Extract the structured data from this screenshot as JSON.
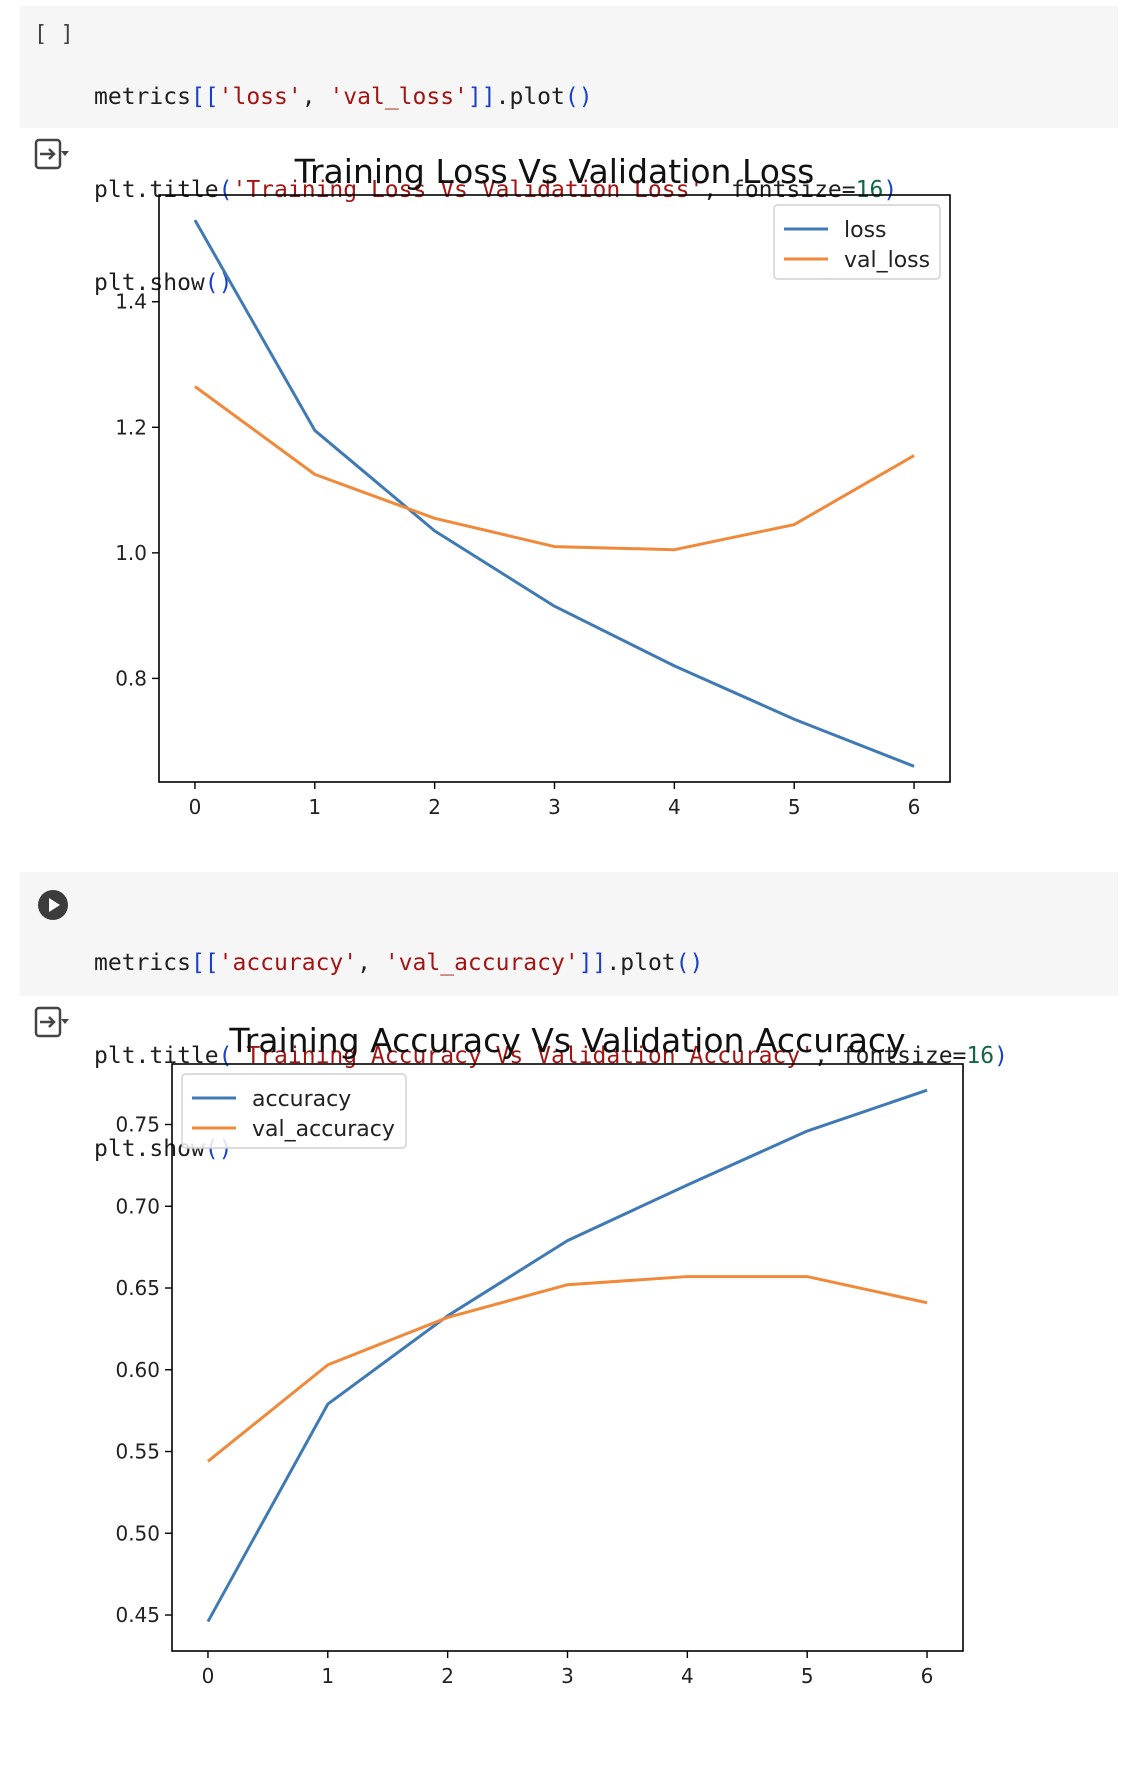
{
  "cells": [
    {
      "indicator": "[ ]",
      "code": {
        "l1": {
          "a": "metrics",
          "b": "[[",
          "c": "'loss'",
          "d": ", ",
          "e": "'val_loss'",
          "f": "]]",
          "g": ".plot",
          "h": "()"
        },
        "l2": {
          "a": "plt.title",
          "b": "(",
          "c": "'Training Loss Vs Validation Loss'",
          "d": ", fontsize=",
          "e": "16",
          "f": ")"
        },
        "l3": {
          "a": "plt.show",
          "b": "()"
        }
      }
    },
    {
      "indicator": "play-icon",
      "code": {
        "l1": {
          "a": "metrics",
          "b": "[[",
          "c": "'accuracy'",
          "d": ", ",
          "e": "'val_accuracy'",
          "f": "]]",
          "g": ".plot",
          "h": "()"
        },
        "l2": {
          "a": "plt.title",
          "b": "(",
          "c": "'Training Accuracy Vs Validation Accuracy'",
          "d": ", fontsize=",
          "e": "16",
          "f": ")"
        },
        "l3": {
          "a": "plt.show",
          "b": "()"
        }
      }
    }
  ],
  "chart_data": [
    {
      "type": "line",
      "title": "Training Loss Vs Validation Loss",
      "x": [
        0,
        1,
        2,
        3,
        4,
        5,
        6
      ],
      "series": [
        {
          "name": "loss",
          "color": "#3f7ab5",
          "values": [
            1.53,
            1.195,
            1.035,
            0.915,
            0.82,
            0.735,
            0.66
          ]
        },
        {
          "name": "val_loss",
          "color": "#f0893a",
          "values": [
            1.265,
            1.125,
            1.055,
            1.01,
            1.005,
            1.045,
            1.155
          ]
        }
      ],
      "xlim": [
        -0.3,
        6.3
      ],
      "ylim": [
        0.635,
        1.57
      ],
      "yticks": [
        "0.8",
        "1.0",
        "1.2",
        "1.4"
      ],
      "xticks": [
        "0",
        "1",
        "2",
        "3",
        "4",
        "5",
        "6"
      ],
      "legend": "top-right",
      "grid": false
    },
    {
      "type": "line",
      "title": "Training Accuracy Vs Validation Accuracy",
      "x": [
        0,
        1,
        2,
        3,
        4,
        5,
        6
      ],
      "series": [
        {
          "name": "accuracy",
          "color": "#3f7ab5",
          "values": [
            0.446,
            0.579,
            0.633,
            0.679,
            0.713,
            0.746,
            0.771
          ]
        },
        {
          "name": "val_accuracy",
          "color": "#f0893a",
          "values": [
            0.544,
            0.603,
            0.632,
            0.652,
            0.657,
            0.657,
            0.641
          ]
        }
      ],
      "xlim": [
        -0.3,
        6.3
      ],
      "ylim": [
        0.428,
        0.787
      ],
      "yticks": [
        "0.45",
        "0.50",
        "0.55",
        "0.60",
        "0.65",
        "0.70",
        "0.75"
      ],
      "xticks": [
        "0",
        "1",
        "2",
        "3",
        "4",
        "5",
        "6"
      ],
      "legend": "top-left",
      "grid": false
    }
  ]
}
